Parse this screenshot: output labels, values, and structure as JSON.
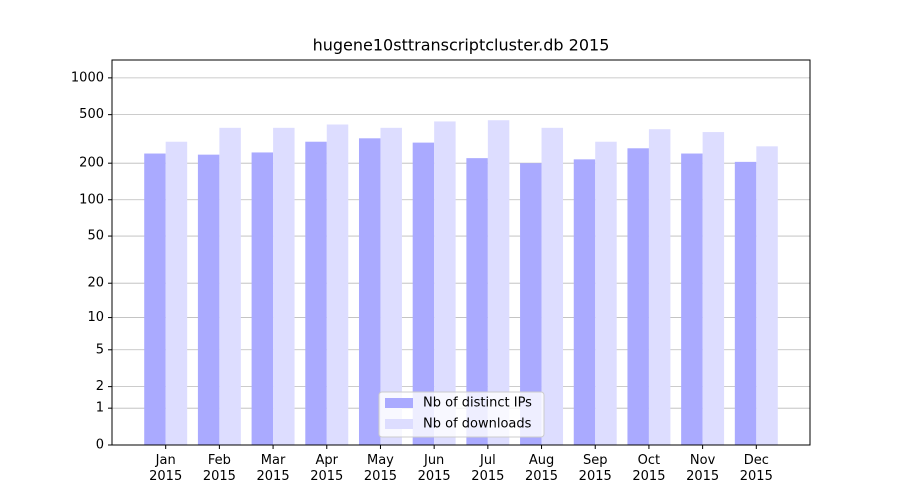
{
  "chart_data": {
    "type": "bar",
    "title": "hugene10sttranscriptcluster.db 2015",
    "categories": [
      "Jan\n2015",
      "Feb\n2015",
      "Mar\n2015",
      "Apr\n2015",
      "May\n2015",
      "Jun\n2015",
      "Jul\n2015",
      "Aug\n2015",
      "Sep\n2015",
      "Oct\n2015",
      "Nov\n2015",
      "Dec\n2015"
    ],
    "series": [
      {
        "name": "Nb of distinct IPs",
        "color": "#aaaaff",
        "values": [
          240,
          235,
          245,
          300,
          320,
          295,
          220,
          200,
          215,
          265,
          240,
          205
        ]
      },
      {
        "name": "Nb of downloads",
        "color": "#ddddff",
        "values": [
          300,
          390,
          390,
          415,
          390,
          440,
          450,
          390,
          300,
          380,
          360,
          275
        ]
      }
    ],
    "yscale": "log1p",
    "ylim": [
      0,
      1400
    ],
    "yticks": [
      0,
      1,
      2,
      5,
      10,
      20,
      50,
      100,
      200,
      500,
      1000
    ],
    "grid": true,
    "legend": "lower center"
  }
}
